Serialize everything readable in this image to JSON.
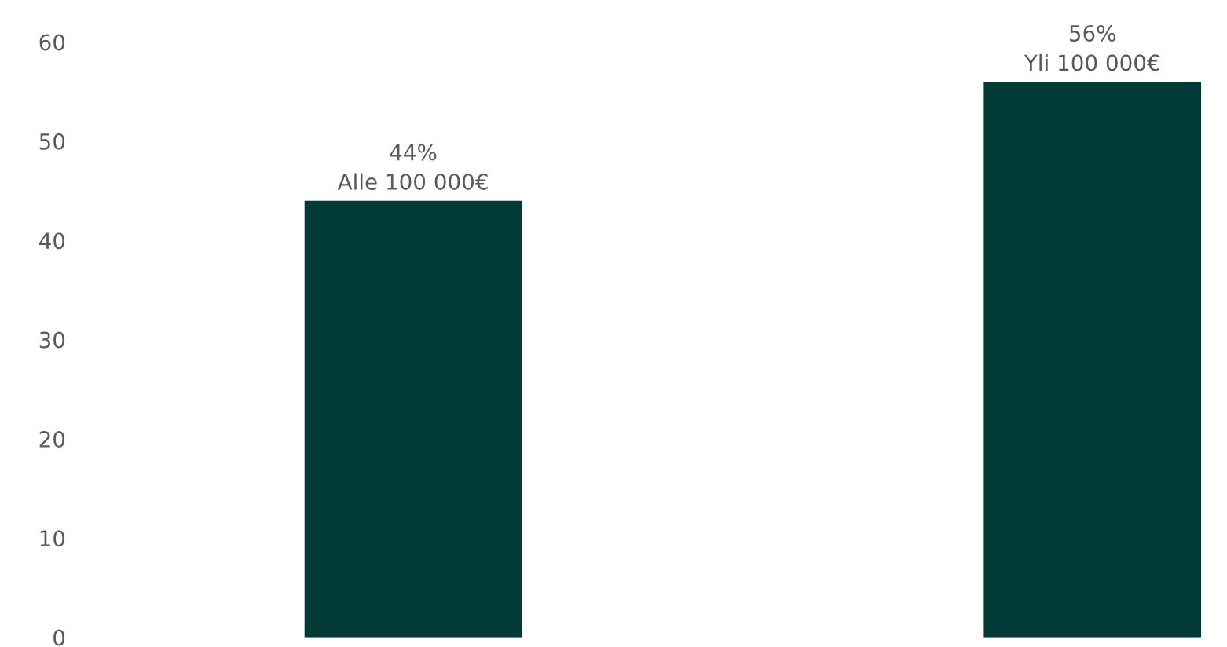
{
  "chart_data": {
    "type": "bar",
    "categories": [
      null,
      null
    ],
    "values": [
      44,
      56
    ],
    "value_labels": [
      "44%\nAlle 100 000€",
      "56%\nYli 100 000€"
    ],
    "color": "#003b38",
    "ylim": [
      0,
      60
    ],
    "yticks": [
      0,
      10,
      20,
      30,
      40,
      50,
      60
    ],
    "grid": false,
    "legend": false
  }
}
